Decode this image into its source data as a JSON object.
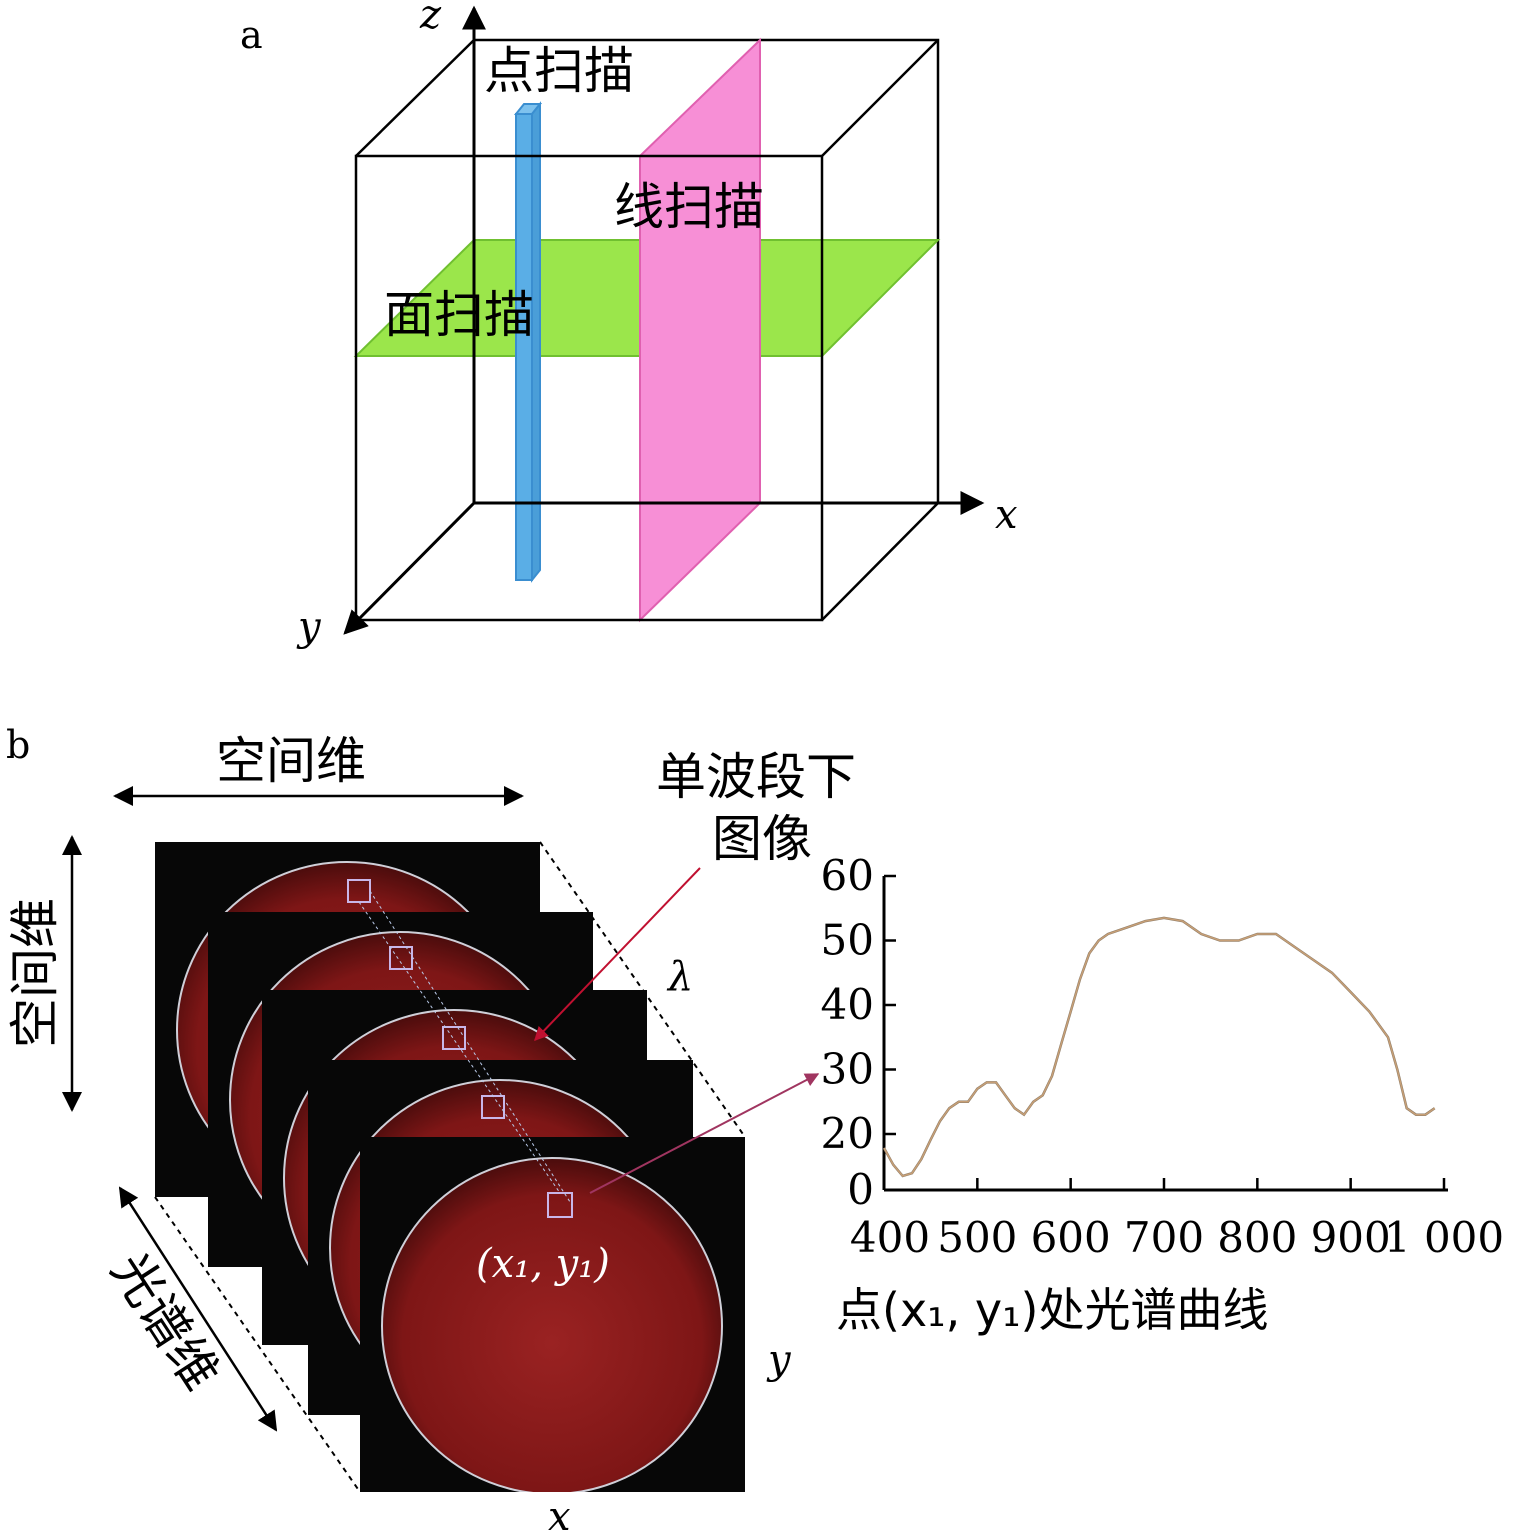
{
  "panel_a": {
    "panel_label": "a",
    "axis_z": "z",
    "axis_x": "x",
    "axis_y": "y",
    "point_scan_label": "点扫描",
    "line_scan_label": "线扫描",
    "area_scan_label": "面扫描",
    "colors": {
      "point": "#5aaee6",
      "line": "#f78fd6",
      "area": "#9be64b"
    }
  },
  "panel_b": {
    "panel_label": "b",
    "spatial_dim_top": "空间维",
    "spatial_dim_side": "空间维",
    "spectral_dim": "光谱维",
    "single_band_line1": "单波段下",
    "single_band_line2": "图像",
    "lambda": "λ",
    "axis_x": "x",
    "axis_y": "y",
    "point_label": "(x₁, y₁)",
    "curve_caption": "点(x₁, y₁)处光谱曲线",
    "colors": {
      "meat": "#8a1a1a",
      "arrow": "#b0406a"
    }
  },
  "chart_data": {
    "type": "line",
    "title": "",
    "xlabel": "",
    "ylabel": "",
    "xlim": [
      400,
      1000
    ],
    "ylim": [
      0,
      60
    ],
    "xticks": [
      "400",
      "500",
      "600",
      "700",
      "800",
      "900",
      "1 000"
    ],
    "yticks": [
      "0",
      "20",
      "30",
      "40",
      "50",
      "60"
    ],
    "series": [
      {
        "color": "#9a8a70",
        "x": [
          400,
          410,
          420,
          430,
          440,
          450,
          460,
          470,
          480,
          490,
          500,
          510,
          520,
          530,
          540,
          550,
          560,
          570,
          580,
          590,
          600,
          610,
          620,
          630,
          640,
          660,
          680,
          700,
          720,
          740,
          760,
          780,
          800,
          820,
          840,
          860,
          880,
          900,
          920,
          940,
          950,
          960,
          970,
          980,
          990
        ],
        "y": [
          15,
          9,
          5,
          6,
          11,
          18,
          22,
          24,
          25,
          25,
          27,
          28,
          28,
          26,
          24,
          23,
          25,
          26,
          29,
          34,
          39,
          44,
          48,
          50,
          51,
          52,
          53,
          53.5,
          53,
          51,
          50,
          50,
          51,
          51,
          49,
          47,
          45,
          42,
          39,
          35,
          30,
          24,
          23,
          23,
          24
        ]
      }
    ]
  }
}
